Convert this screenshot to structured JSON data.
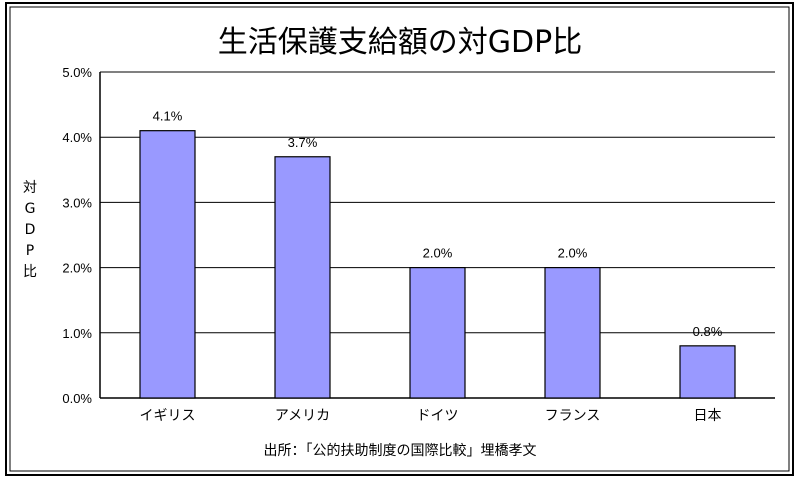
{
  "chart_data": {
    "type": "bar",
    "title": "生活保護支給額の対GDP比",
    "ylabel": "対GDP比",
    "ylim": [
      0,
      5
    ],
    "yticks": [
      "0.0%",
      "1.0%",
      "2.0%",
      "3.0%",
      "4.0%",
      "5.0%"
    ],
    "ytick_values": [
      0,
      1,
      2,
      3,
      4,
      5
    ],
    "categories": [
      "イギリス",
      "アメリカ",
      "ドイツ",
      "フランス",
      "日本"
    ],
    "values": [
      4.1,
      3.7,
      2.0,
      2.0,
      0.8
    ],
    "data_labels": [
      "4.1%",
      "3.7%",
      "2.0%",
      "2.0%",
      "0.8%"
    ],
    "grid": true,
    "bar_color": "#9999ff",
    "source": "出所：「公的扶助制度の国際比較」埋橋孝文"
  }
}
